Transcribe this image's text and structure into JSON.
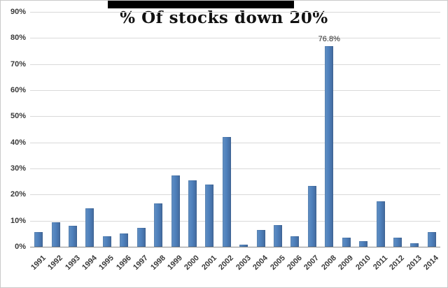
{
  "page": {
    "background_color": "#ffffff",
    "border_color": "#c9c9c9",
    "redacted_region_color": "#000000"
  },
  "title": "% Of stocks down 20%",
  "chart_data": {
    "type": "bar",
    "title": "% Of stocks down 20%",
    "xlabel": "",
    "ylabel": "",
    "categories": [
      "1991",
      "1992",
      "1993",
      "1994",
      "1995",
      "1996",
      "1997",
      "1998",
      "1999",
      "2000",
      "2001",
      "2002",
      "2003",
      "2004",
      "2005",
      "2006",
      "2007",
      "2008",
      "2009",
      "2010",
      "2011",
      "2012",
      "2013",
      "2014"
    ],
    "values": [
      5.5,
      9.5,
      8.0,
      14.8,
      4.0,
      5.0,
      7.2,
      16.5,
      27.3,
      25.5,
      23.8,
      42.0,
      0.8,
      6.3,
      8.4,
      3.9,
      23.2,
      76.8,
      3.4,
      2.1,
      17.3,
      3.6,
      1.4,
      5.7
    ],
    "ylim": [
      0,
      90
    ],
    "ytick_step": 10,
    "ytick_labels": [
      "0%",
      "10%",
      "20%",
      "30%",
      "40%",
      "50%",
      "60%",
      "70%",
      "80%",
      "90%"
    ],
    "grid": true,
    "legend": "none",
    "bar_color": "#4f81bd",
    "gridline_color": "#d9d9d9",
    "axis_color": "#8c8c8c",
    "data_label": {
      "category": "2008",
      "text": "76.8%"
    }
  }
}
